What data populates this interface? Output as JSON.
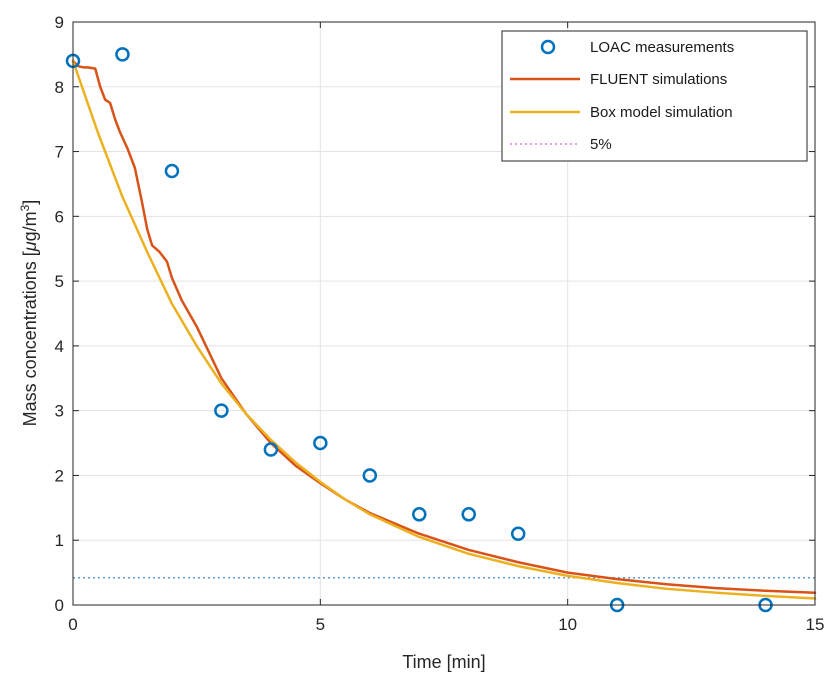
{
  "chart_data": {
    "type": "line",
    "xlabel": "Time [min]",
    "ylabel_parts": {
      "prefix": "Mass concentrations [",
      "mu": "μ",
      "unit": "g/m",
      "sup": "3",
      "suffix": "]"
    },
    "xlim": [
      0,
      15
    ],
    "ylim": [
      0,
      9
    ],
    "xticks": [
      0,
      5,
      10,
      15
    ],
    "yticks": [
      0,
      1,
      2,
      3,
      4,
      5,
      6,
      7,
      8,
      9
    ],
    "grid": true,
    "legend_position": "top-right",
    "series": [
      {
        "name": "LOAC measurements",
        "kind": "markers",
        "color": "#0072BD",
        "points": [
          [
            0,
            8.4
          ],
          [
            1,
            8.5
          ],
          [
            2,
            6.7
          ],
          [
            3,
            3.0
          ],
          [
            4,
            2.4
          ],
          [
            5,
            2.5
          ],
          [
            6,
            2.0
          ],
          [
            7,
            1.4
          ],
          [
            8,
            1.4
          ],
          [
            9,
            1.1
          ],
          [
            11,
            0.0
          ],
          [
            14,
            0.0
          ]
        ]
      },
      {
        "name": "FLUENT simulations",
        "kind": "line",
        "color": "#D95319",
        "points": [
          [
            0,
            8.4
          ],
          [
            0.1,
            8.32
          ],
          [
            0.2,
            8.3
          ],
          [
            0.3,
            8.3
          ],
          [
            0.45,
            8.28
          ],
          [
            0.55,
            8.0
          ],
          [
            0.65,
            7.8
          ],
          [
            0.75,
            7.75
          ],
          [
            0.85,
            7.5
          ],
          [
            0.95,
            7.3
          ],
          [
            1.1,
            7.05
          ],
          [
            1.25,
            6.75
          ],
          [
            1.4,
            6.2
          ],
          [
            1.5,
            5.8
          ],
          [
            1.6,
            5.55
          ],
          [
            1.75,
            5.45
          ],
          [
            1.9,
            5.3
          ],
          [
            2.0,
            5.05
          ],
          [
            2.2,
            4.7
          ],
          [
            2.5,
            4.3
          ],
          [
            3.0,
            3.5
          ],
          [
            3.5,
            2.95
          ],
          [
            4.0,
            2.5
          ],
          [
            4.5,
            2.15
          ],
          [
            5.0,
            1.88
          ],
          [
            5.5,
            1.63
          ],
          [
            6.0,
            1.42
          ],
          [
            7.0,
            1.1
          ],
          [
            8.0,
            0.85
          ],
          [
            9.0,
            0.66
          ],
          [
            10.0,
            0.5
          ],
          [
            11.0,
            0.4
          ],
          [
            12.0,
            0.32
          ],
          [
            13.0,
            0.26
          ],
          [
            14.0,
            0.22
          ],
          [
            15.0,
            0.19
          ]
        ]
      },
      {
        "name": "Box model simulation",
        "kind": "line",
        "color": "#EDB120",
        "points": [
          [
            0,
            8.4
          ],
          [
            0.25,
            7.85
          ],
          [
            0.5,
            7.3
          ],
          [
            0.75,
            6.8
          ],
          [
            1.0,
            6.3
          ],
          [
            1.5,
            5.45
          ],
          [
            2.0,
            4.65
          ],
          [
            2.5,
            4.0
          ],
          [
            3.0,
            3.42
          ],
          [
            3.5,
            2.95
          ],
          [
            4.0,
            2.55
          ],
          [
            4.5,
            2.2
          ],
          [
            5.0,
            1.9
          ],
          [
            5.5,
            1.63
          ],
          [
            6.0,
            1.4
          ],
          [
            7.0,
            1.05
          ],
          [
            8.0,
            0.79
          ],
          [
            9.0,
            0.6
          ],
          [
            10.0,
            0.45
          ],
          [
            11.0,
            0.34
          ],
          [
            12.0,
            0.25
          ],
          [
            13.0,
            0.19
          ],
          [
            14.0,
            0.14
          ],
          [
            15.0,
            0.1
          ]
        ]
      },
      {
        "name": "5%",
        "kind": "dotted",
        "color": "#5B9BD5",
        "legend_color": "#E27FD4",
        "points": [
          [
            0,
            0.42
          ],
          [
            15,
            0.42
          ]
        ]
      }
    ]
  }
}
